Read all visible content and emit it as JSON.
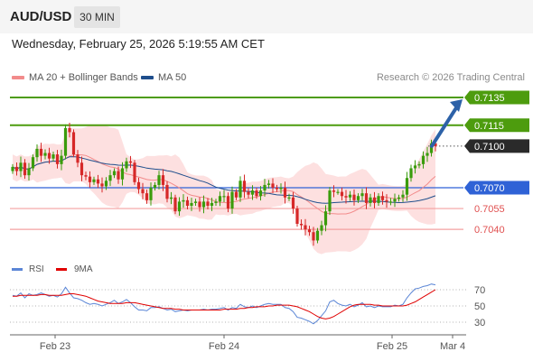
{
  "header": {
    "symbol": "AUD/USD",
    "timeframe": "30 MIN"
  },
  "timestamp": "Wednesday, February 25, 2026 5:19:55 AM CET",
  "legend": {
    "ma20_label": "MA 20 + Bollinger Bands",
    "ma20_color": "#f28b8b",
    "ma50_label": "MA 50",
    "ma50_color": "#1f4e8c"
  },
  "credit": "Research © 2026 Trading Central",
  "rsi_legend": {
    "rsi_label": "RSI",
    "rsi_color": "#5b86d6",
    "ma_label": "9MA",
    "ma_color": "#e00000"
  },
  "chart_data": {
    "type": "candlestick",
    "symbol": "AUD/USD",
    "price_range": [
      0.7025,
      0.714
    ],
    "x_labels": [
      "Feb 23",
      "Feb 24",
      "Feb 25",
      "Mar 4"
    ],
    "levels": [
      {
        "value": "0.7135",
        "kind": "resistance",
        "color": "#4d9c0e"
      },
      {
        "value": "0.7115",
        "kind": "resistance",
        "color": "#4d9c0e"
      },
      {
        "value": "0.7100",
        "kind": "last",
        "color": "#222222"
      },
      {
        "value": "0.7070",
        "kind": "pivot",
        "color": "#2f62d6"
      },
      {
        "value": "0.7055",
        "kind": "support",
        "color": "#e05050"
      },
      {
        "value": "0.7040",
        "kind": "support",
        "color": "#e05050"
      }
    ],
    "arrow": {
      "from": 0.71,
      "to": 0.7135,
      "direction": "up"
    },
    "close": [
      0.7085,
      0.7082,
      0.7088,
      0.7079,
      0.7084,
      0.7092,
      0.7098,
      0.7093,
      0.7095,
      0.7091,
      0.7094,
      0.7087,
      0.7093,
      0.7113,
      0.711,
      0.7094,
      0.7088,
      0.7079,
      0.7078,
      0.7074,
      0.7076,
      0.7073,
      0.7071,
      0.7075,
      0.7079,
      0.7082,
      0.7076,
      0.7084,
      0.7089,
      0.7088,
      0.7074,
      0.7069,
      0.7066,
      0.7061,
      0.707,
      0.7072,
      0.7079,
      0.7072,
      0.7062,
      0.7063,
      0.7053,
      0.706,
      0.7061,
      0.7057,
      0.7059,
      0.706,
      0.7056,
      0.706,
      0.7057,
      0.7059,
      0.706,
      0.7064,
      0.7064,
      0.7055,
      0.7067,
      0.7063,
      0.7075,
      0.7067,
      0.7065,
      0.7068,
      0.7064,
      0.7068,
      0.7072,
      0.7073,
      0.707,
      0.7069,
      0.707,
      0.7063,
      0.7063,
      0.7055,
      0.7044,
      0.7043,
      0.704,
      0.7038,
      0.7032,
      0.7039,
      0.7043,
      0.7053,
      0.7068,
      0.7067,
      0.7067,
      0.7064,
      0.7063,
      0.7065,
      0.7061,
      0.7064,
      0.7066,
      0.7059,
      0.7063,
      0.7059,
      0.7064,
      0.7061,
      0.706,
      0.706,
      0.7062,
      0.7063,
      0.7065,
      0.7077,
      0.7084,
      0.7086,
      0.7087,
      0.7093,
      0.7095,
      0.7102,
      0.71
    ],
    "rsi": {
      "ticks": [
        70,
        50,
        30
      ],
      "rsi": [
        63,
        62,
        66,
        60,
        65,
        63,
        64,
        66,
        64,
        62,
        63,
        61,
        65,
        73,
        66,
        60,
        59,
        57,
        54,
        52,
        53,
        52,
        50,
        52,
        54,
        57,
        53,
        55,
        58,
        54,
        49,
        45,
        45,
        44,
        48,
        48,
        49,
        47,
        45,
        46,
        43,
        44,
        45,
        44,
        45,
        45,
        45,
        46,
        45,
        46,
        46,
        47,
        48,
        45,
        48,
        47,
        52,
        49,
        48,
        50,
        48,
        50,
        52,
        53,
        52,
        52,
        52,
        48,
        47,
        43,
        36,
        35,
        33,
        31,
        28,
        32,
        38,
        44,
        55,
        57,
        53,
        51,
        50,
        52,
        49,
        51,
        54,
        49,
        50,
        48,
        50,
        49,
        49,
        49,
        51,
        50,
        52,
        60,
        66,
        71,
        72,
        74,
        75,
        77,
        76
      ],
      "ma": [
        62,
        62,
        63,
        63,
        63,
        63,
        63,
        64,
        64,
        63,
        63,
        63,
        63,
        64,
        65,
        65,
        64,
        63,
        62,
        60,
        58,
        56,
        55,
        54,
        53,
        53,
        53,
        53,
        54,
        54,
        54,
        53,
        52,
        51,
        50,
        49,
        48,
        47,
        47,
        47,
        46,
        46,
        45,
        45,
        45,
        45,
        45,
        45,
        45,
        45,
        45,
        45,
        46,
        46,
        46,
        46,
        47,
        47,
        48,
        48,
        49,
        49,
        49,
        50,
        50,
        51,
        51,
        51,
        51,
        50,
        49,
        47,
        45,
        43,
        40,
        37,
        35,
        34,
        35,
        37,
        40,
        43,
        46,
        49,
        51,
        52,
        52,
        52,
        52,
        51,
        51,
        50,
        50,
        50,
        50,
        50,
        50,
        51,
        53,
        55,
        58,
        61,
        64,
        67,
        70
      ]
    }
  }
}
